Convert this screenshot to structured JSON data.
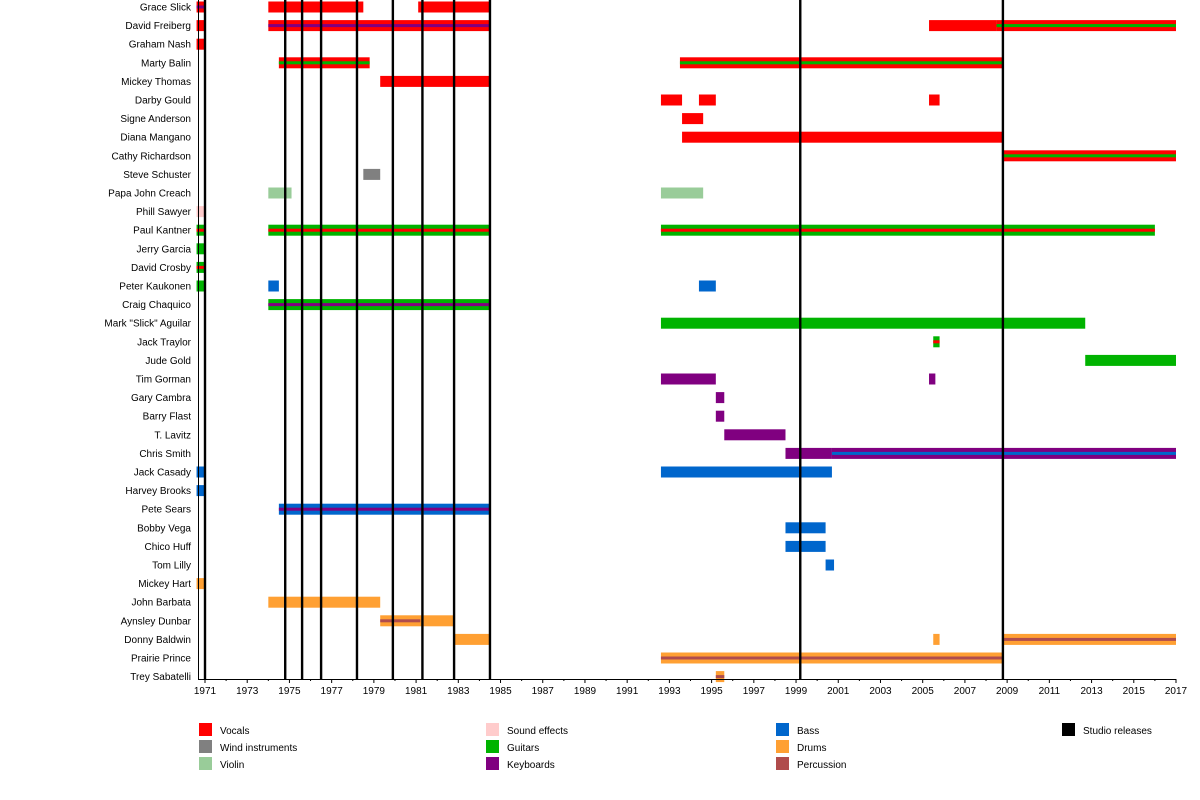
{
  "chart_data": {
    "type": "timeline",
    "title": "",
    "xlabel": "",
    "ylabel": "",
    "xlim": [
      1970.6,
      2017
    ],
    "x_ticks": [
      1971,
      1973,
      1975,
      1977,
      1979,
      1981,
      1983,
      1985,
      1987,
      1989,
      1991,
      1993,
      1995,
      1997,
      1999,
      2001,
      2003,
      2005,
      2007,
      2009,
      2011,
      2013,
      2015,
      2017
    ],
    "role_colors": {
      "Vocals": "#ff0000",
      "Wind instruments": "#808080",
      "Violin": "#99cc99",
      "Sound effects": "#ffcccc",
      "Guitars": "#00b300",
      "Keyboards": "#800080",
      "Bass": "#0066cc",
      "Drums": "#ffa033",
      "Percussion": "#b04c4c",
      "Studio releases": "#000000"
    },
    "legend": [
      "Vocals",
      "Wind instruments",
      "Violin",
      "Sound effects",
      "Guitars",
      "Keyboards",
      "Bass",
      "Drums",
      "Percussion",
      "Studio releases"
    ],
    "studio_releases": [
      1971.0,
      1974.8,
      1975.6,
      1976.5,
      1978.2,
      1979.9,
      1981.3,
      1982.8,
      1984.5,
      1999.2,
      2008.8
    ],
    "members": [
      {
        "name": "Grace Slick",
        "bars": [
          {
            "start": 1970.6,
            "end": 1971.0,
            "main": "Vocals",
            "inner": "Keyboards"
          },
          {
            "start": 1974.0,
            "end": 1978.5,
            "main": "Vocals"
          },
          {
            "start": 1981.1,
            "end": 1984.5,
            "main": "Vocals"
          }
        ]
      },
      {
        "name": "David Freiberg",
        "bars": [
          {
            "start": 1970.6,
            "end": 1971.0,
            "main": "Vocals"
          },
          {
            "start": 1974.0,
            "end": 1984.5,
            "main": "Vocals",
            "inner": "Keyboards"
          },
          {
            "start": 2005.3,
            "end": 2008.5,
            "main": "Vocals"
          },
          {
            "start": 2008.5,
            "end": 2017.0,
            "main": "Vocals",
            "inner": "Guitars"
          }
        ]
      },
      {
        "name": "Graham Nash",
        "bars": [
          {
            "start": 1970.6,
            "end": 1971.0,
            "main": "Vocals"
          }
        ]
      },
      {
        "name": "Marty Balin",
        "bars": [
          {
            "start": 1974.5,
            "end": 1978.8,
            "main": "Vocals",
            "inner": "Guitars"
          },
          {
            "start": 1993.5,
            "end": 2008.8,
            "main": "Vocals",
            "inner": "Guitars"
          }
        ]
      },
      {
        "name": "Mickey Thomas",
        "bars": [
          {
            "start": 1979.3,
            "end": 1984.5,
            "main": "Vocals"
          }
        ]
      },
      {
        "name": "Darby Gould",
        "bars": [
          {
            "start": 1992.6,
            "end": 1993.6,
            "main": "Vocals"
          },
          {
            "start": 1994.4,
            "end": 1995.2,
            "main": "Vocals"
          },
          {
            "start": 2005.3,
            "end": 2005.8,
            "main": "Vocals"
          }
        ]
      },
      {
        "name": "Signe Anderson",
        "bars": [
          {
            "start": 1993.6,
            "end": 1994.6,
            "main": "Vocals"
          }
        ]
      },
      {
        "name": "Diana Mangano",
        "bars": [
          {
            "start": 1993.6,
            "end": 2008.8,
            "main": "Vocals"
          }
        ]
      },
      {
        "name": "Cathy Richardson",
        "bars": [
          {
            "start": 2008.8,
            "end": 2017.0,
            "main": "Vocals",
            "inner": "Guitars"
          }
        ]
      },
      {
        "name": "Steve Schuster",
        "bars": [
          {
            "start": 1978.5,
            "end": 1979.3,
            "main": "Wind instruments"
          }
        ]
      },
      {
        "name": "Papa John Creach",
        "bars": [
          {
            "start": 1974.0,
            "end": 1975.1,
            "main": "Violin"
          },
          {
            "start": 1992.6,
            "end": 1994.6,
            "main": "Violin"
          }
        ]
      },
      {
        "name": "Phill Sawyer",
        "bars": [
          {
            "start": 1970.6,
            "end": 1971.0,
            "main": "Sound effects"
          }
        ]
      },
      {
        "name": "Paul Kantner",
        "bars": [
          {
            "start": 1970.6,
            "end": 1971.0,
            "main": "Guitars",
            "inner": "Vocals"
          },
          {
            "start": 1974.0,
            "end": 1984.5,
            "main": "Guitars",
            "inner": "Vocals"
          },
          {
            "start": 1992.6,
            "end": 2016.0,
            "main": "Guitars",
            "inner": "Vocals"
          }
        ]
      },
      {
        "name": "Jerry Garcia",
        "bars": [
          {
            "start": 1970.6,
            "end": 1971.0,
            "main": "Guitars"
          }
        ]
      },
      {
        "name": "David Crosby",
        "bars": [
          {
            "start": 1970.6,
            "end": 1971.0,
            "main": "Guitars",
            "inner": "Vocals"
          }
        ]
      },
      {
        "name": "Peter Kaukonen",
        "bars": [
          {
            "start": 1970.6,
            "end": 1971.0,
            "main": "Guitars"
          },
          {
            "start": 1974.0,
            "end": 1974.5,
            "main": "Bass"
          },
          {
            "start": 1994.4,
            "end": 1995.2,
            "main": "Bass"
          }
        ]
      },
      {
        "name": "Craig Chaquico",
        "bars": [
          {
            "start": 1974.0,
            "end": 1984.5,
            "main": "Guitars",
            "inner": "Keyboards"
          }
        ]
      },
      {
        "name": "Mark \"Slick\" Aguilar",
        "bars": [
          {
            "start": 1992.6,
            "end": 2012.7,
            "main": "Guitars"
          }
        ]
      },
      {
        "name": "Jack Traylor",
        "bars": [
          {
            "start": 2005.5,
            "end": 2005.8,
            "main": "Guitars",
            "inner": "Vocals"
          }
        ]
      },
      {
        "name": "Jude Gold",
        "bars": [
          {
            "start": 2012.7,
            "end": 2017.0,
            "main": "Guitars"
          }
        ]
      },
      {
        "name": "Tim Gorman",
        "bars": [
          {
            "start": 1992.6,
            "end": 1995.2,
            "main": "Keyboards"
          },
          {
            "start": 2005.3,
            "end": 2005.6,
            "main": "Keyboards"
          }
        ]
      },
      {
        "name": "Gary Cambra",
        "bars": [
          {
            "start": 1995.2,
            "end": 1995.6,
            "main": "Keyboards"
          }
        ]
      },
      {
        "name": "Barry Flast",
        "bars": [
          {
            "start": 1995.2,
            "end": 1995.6,
            "main": "Keyboards"
          }
        ]
      },
      {
        "name": "T. Lavitz",
        "bars": [
          {
            "start": 1995.6,
            "end": 1998.5,
            "main": "Keyboards"
          }
        ]
      },
      {
        "name": "Chris Smith",
        "bars": [
          {
            "start": 1998.5,
            "end": 2000.7,
            "main": "Keyboards"
          },
          {
            "start": 2000.7,
            "end": 2017.0,
            "main": "Keyboards",
            "inner": "Bass"
          }
        ]
      },
      {
        "name": "Jack Casady",
        "bars": [
          {
            "start": 1970.6,
            "end": 1971.0,
            "main": "Bass"
          },
          {
            "start": 1992.6,
            "end": 2000.7,
            "main": "Bass"
          }
        ]
      },
      {
        "name": "Harvey Brooks",
        "bars": [
          {
            "start": 1970.6,
            "end": 1971.0,
            "main": "Bass"
          }
        ]
      },
      {
        "name": "Pete Sears",
        "bars": [
          {
            "start": 1974.5,
            "end": 1984.5,
            "main": "Bass",
            "inner": "Keyboards"
          }
        ]
      },
      {
        "name": "Bobby Vega",
        "bars": [
          {
            "start": 1998.5,
            "end": 2000.4,
            "main": "Bass"
          }
        ]
      },
      {
        "name": "Chico Huff",
        "bars": [
          {
            "start": 1998.5,
            "end": 2000.4,
            "main": "Bass"
          }
        ]
      },
      {
        "name": "Tom Lilly",
        "bars": [
          {
            "start": 2000.4,
            "end": 2000.8,
            "main": "Bass"
          }
        ]
      },
      {
        "name": "Mickey Hart",
        "bars": [
          {
            "start": 1970.6,
            "end": 1971.0,
            "main": "Drums"
          }
        ]
      },
      {
        "name": "John Barbata",
        "bars": [
          {
            "start": 1974.0,
            "end": 1979.3,
            "main": "Drums"
          }
        ]
      },
      {
        "name": "Aynsley Dunbar",
        "bars": [
          {
            "start": 1979.3,
            "end": 1982.8,
            "main": "Drums",
            "inner_start": 1979.3,
            "inner_end": 1981.2,
            "inner": "Percussion"
          }
        ]
      },
      {
        "name": "Donny Baldwin",
        "bars": [
          {
            "start": 1982.8,
            "end": 1984.5,
            "main": "Drums"
          },
          {
            "start": 2005.5,
            "end": 2005.8,
            "main": "Drums"
          },
          {
            "start": 2008.8,
            "end": 2017.0,
            "main": "Drums",
            "inner": "Percussion"
          }
        ]
      },
      {
        "name": "Prairie Prince",
        "bars": [
          {
            "start": 1992.6,
            "end": 2008.8,
            "main": "Drums",
            "inner": "Percussion"
          }
        ]
      },
      {
        "name": "Trey Sabatelli",
        "bars": [
          {
            "start": 1995.2,
            "end": 1995.6,
            "main": "Drums",
            "inner": "Percussion"
          }
        ]
      }
    ]
  }
}
